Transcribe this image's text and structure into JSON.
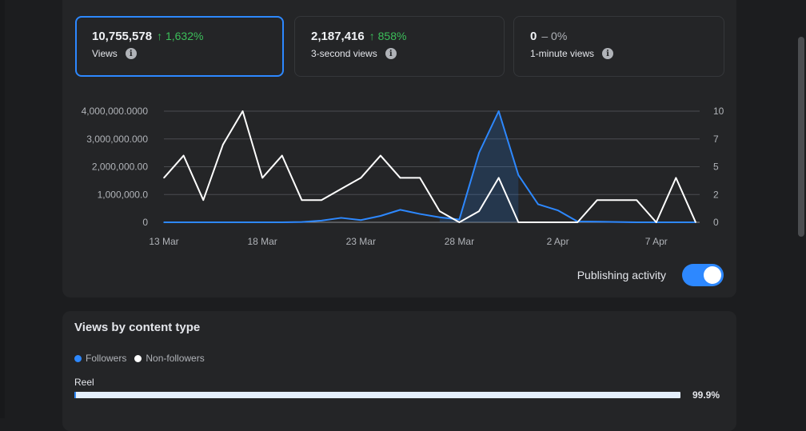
{
  "metrics": [
    {
      "value": "10,755,578",
      "change": "1,632%",
      "direction": "up",
      "label": "Views",
      "active": true
    },
    {
      "value": "2,187,416",
      "change": "858%",
      "direction": "up",
      "label": "3-second views",
      "active": false
    },
    {
      "value": "0",
      "change": "0%",
      "direction": "neutral",
      "label": "1-minute views",
      "active": false
    }
  ],
  "icons": {
    "info": "info-icon",
    "arrow_up": "↑",
    "dash": "–"
  },
  "chart_data": {
    "type": "line",
    "x": [
      "13 Mar",
      "14 Mar",
      "15 Mar",
      "16 Mar",
      "17 Mar",
      "18 Mar",
      "19 Mar",
      "20 Mar",
      "21 Mar",
      "22 Mar",
      "23 Mar",
      "24 Mar",
      "25 Mar",
      "26 Mar",
      "27 Mar",
      "28 Mar",
      "29 Mar",
      "30 Mar",
      "31 Mar",
      "1 Apr",
      "2 Apr",
      "3 Apr",
      "4 Apr",
      "5 Apr",
      "6 Apr",
      "7 Apr",
      "8 Apr",
      "9 Apr"
    ],
    "x_tick_labels": [
      "13 Mar",
      "18 Mar",
      "23 Mar",
      "28 Mar",
      "2 Apr",
      "7 Apr"
    ],
    "y_left_ticks": [
      "0",
      "1,000,000.0",
      "2,000,000.00",
      "3,000,000.000",
      "4,000,000.0000"
    ],
    "y_right_ticks": [
      "0",
      "2",
      "5",
      "7",
      "10"
    ],
    "ylim_left": [
      0,
      4000000
    ],
    "ylim_right": [
      0,
      10
    ],
    "series": [
      {
        "axis": "left",
        "color": "#2d88ff",
        "values": [
          0,
          0,
          0,
          0,
          0,
          0,
          0,
          10000,
          60000,
          160000,
          80000,
          230000,
          450000,
          300000,
          180000,
          100000,
          2500000,
          4000000,
          1700000,
          650000,
          430000,
          30000,
          20000,
          10000,
          0,
          0,
          0,
          0
        ]
      },
      {
        "axis": "right",
        "color": "#ffffff",
        "values": [
          4,
          6,
          2,
          7,
          10,
          4,
          6,
          2,
          2,
          3,
          4,
          6,
          4,
          4,
          1,
          0,
          1,
          4,
          0,
          0,
          0,
          0,
          2,
          2,
          2,
          0,
          4,
          0
        ]
      }
    ],
    "highlight_area": {
      "start": "27 Mar",
      "end": "31 Mar"
    },
    "grid": true,
    "legend": "none"
  },
  "publishing": {
    "label": "Publishing activity",
    "enabled": true
  },
  "content_type": {
    "title": "Views by content type",
    "legend": [
      {
        "label": "Followers",
        "color": "#2d88ff"
      },
      {
        "label": "Non-followers",
        "color": "#ffffff"
      }
    ],
    "rows": [
      {
        "label": "Reel",
        "followers_fraction": 0.003,
        "total_fraction": 1.0,
        "percent": "99.9%"
      }
    ]
  }
}
